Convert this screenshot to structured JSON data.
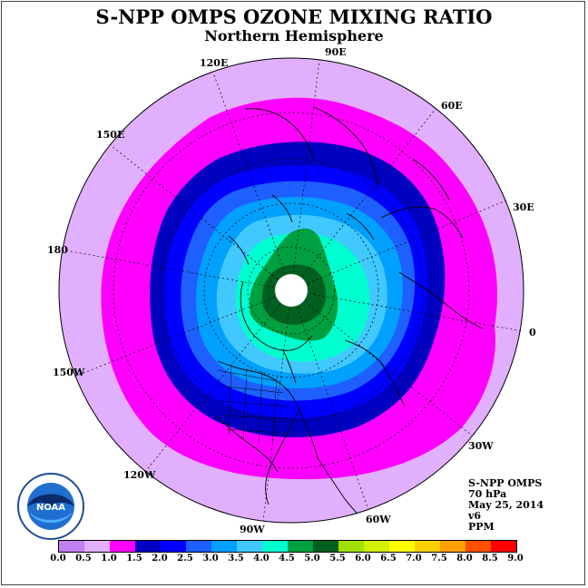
{
  "header": {
    "title": "S-NPP OMPS OZONE MIXING RATIO",
    "subtitle": "Northern Hemisphere"
  },
  "longitude_labels": [
    "90E",
    "60E",
    "30E",
    "0",
    "30W",
    "60W",
    "90W",
    "120W",
    "150W",
    "180",
    "150E",
    "120E"
  ],
  "info": {
    "instrument": "S-NPP OMPS",
    "level": "70 hPa",
    "date": "May 25, 2014",
    "version": "v6",
    "units": "PPM"
  },
  "colorbar": {
    "ticks": [
      "0.0",
      "0.5",
      "1.0",
      "1.5",
      "2.0",
      "2.5",
      "3.0",
      "3.5",
      "4.0",
      "4.5",
      "5.0",
      "5.5",
      "6.0",
      "6.5",
      "7.0",
      "7.5",
      "8.0",
      "8.5",
      "9.0"
    ],
    "colors": [
      "#c080f0",
      "#e0b0ff",
      "#ff00ff",
      "#0000c0",
      "#0000ff",
      "#1e60ff",
      "#00a0ff",
      "#40c8ff",
      "#00ffd0",
      "#00a040",
      "#006020",
      "#a0e000",
      "#d0f000",
      "#ffff00",
      "#ffd000",
      "#ffa000",
      "#ff5000",
      "#ff0000",
      "#8b5a3c"
    ]
  },
  "logo": {
    "text": "NOAA",
    "icon": "noaa-logo-icon"
  },
  "map": {
    "region": "Northern Hemisphere",
    "projection": "polar-stereographic"
  }
}
